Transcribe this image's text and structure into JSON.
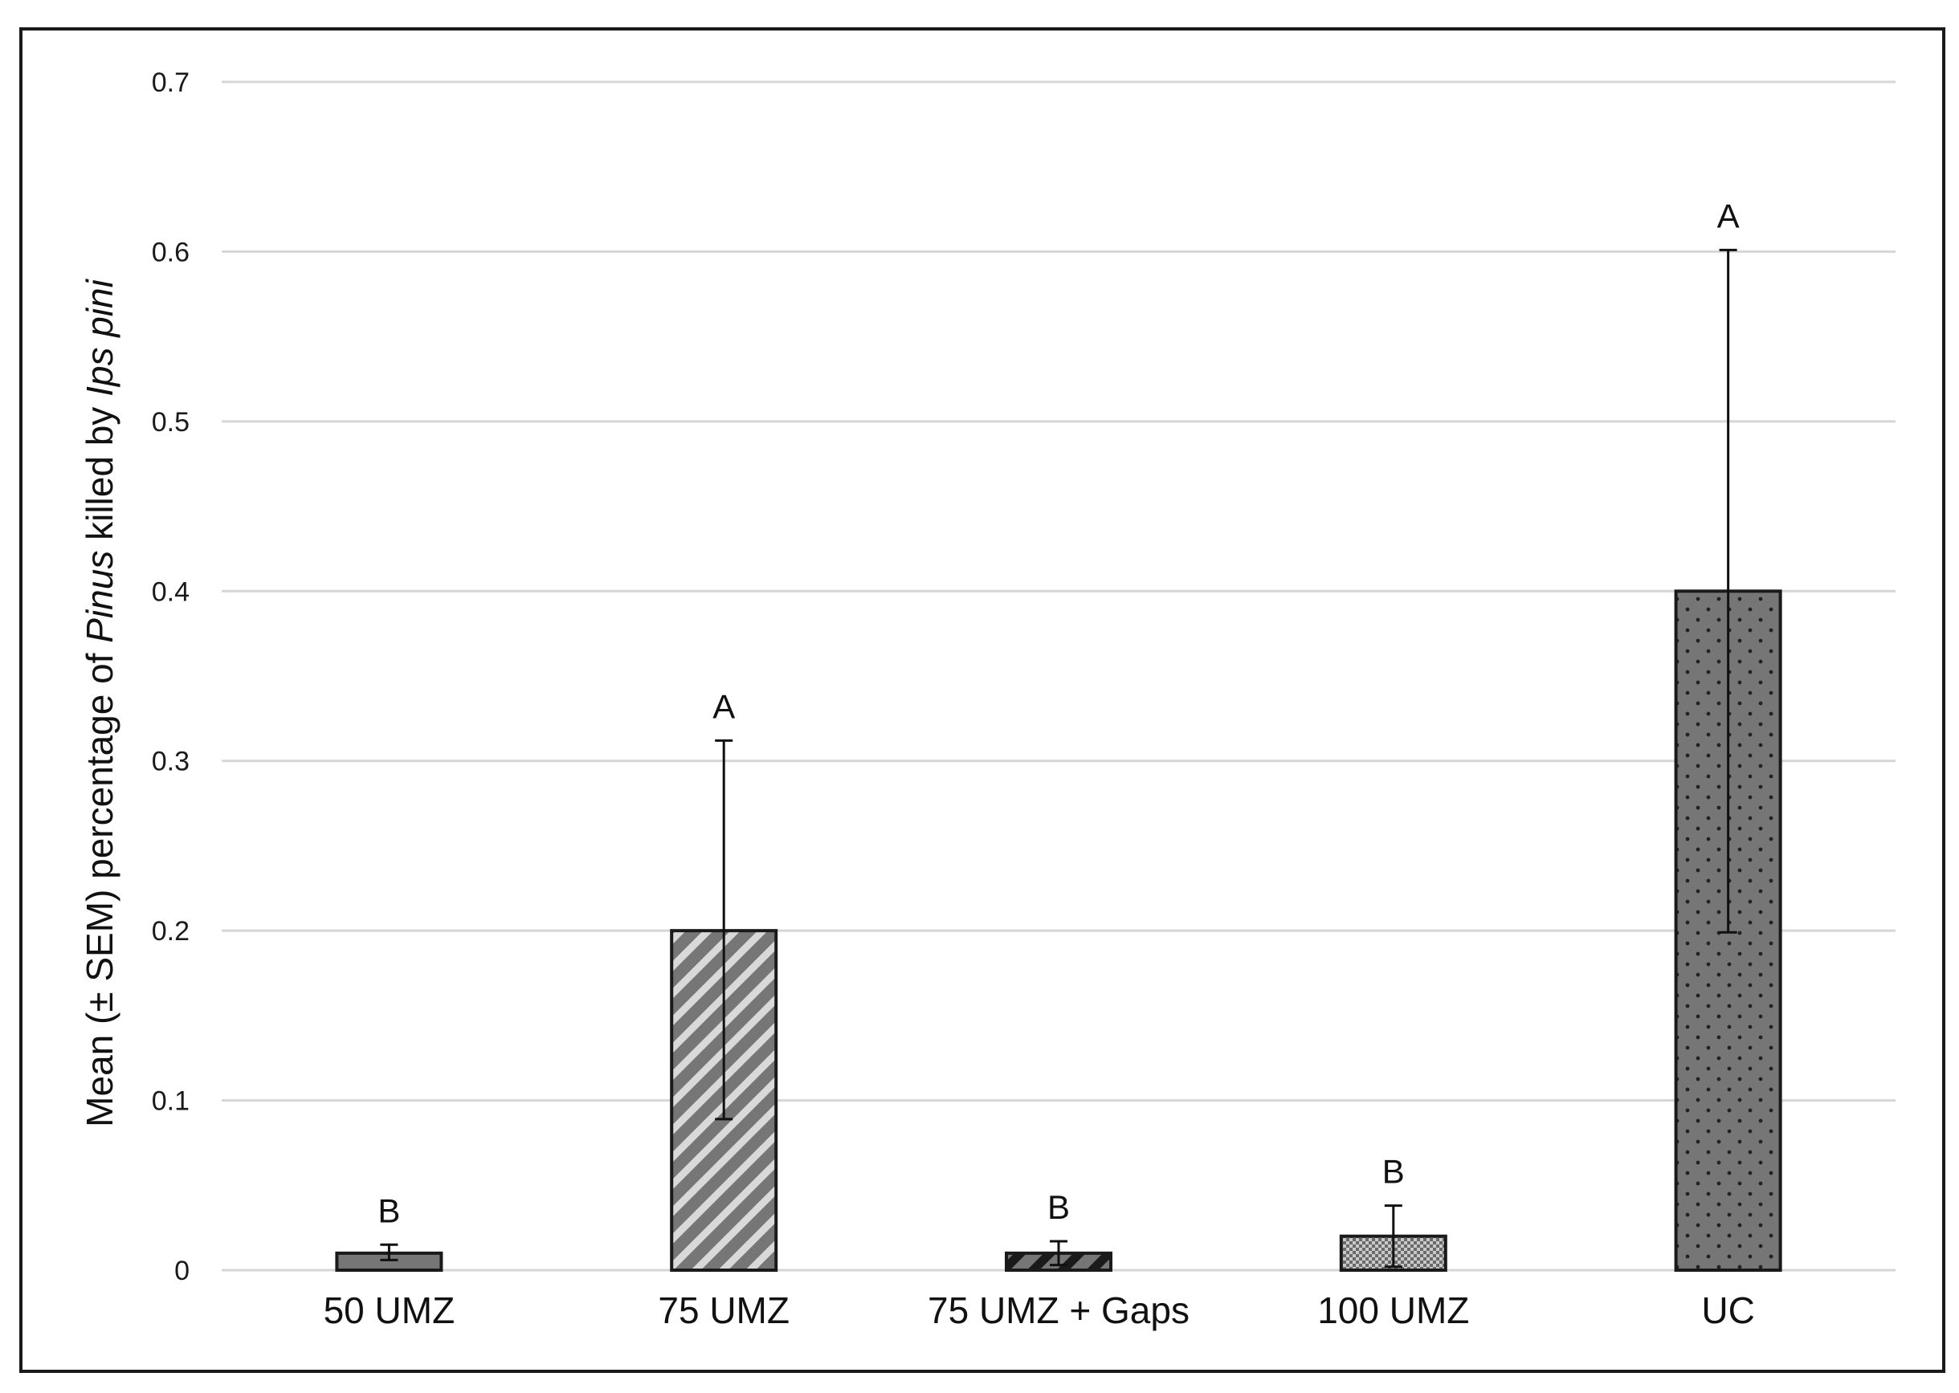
{
  "chart_data": {
    "type": "bar",
    "title": "",
    "xlabel": "",
    "ylabel_parts": [
      {
        "text": "Mean (± SEM) percentage of ",
        "italic": false
      },
      {
        "text": "Pinus",
        "italic": true
      },
      {
        "text": " killed by ",
        "italic": false
      },
      {
        "text": "Ips pini",
        "italic": true
      }
    ],
    "ylim": [
      0,
      0.7
    ],
    "yticks": [
      0,
      0.1,
      0.2,
      0.3,
      0.4,
      0.5,
      0.6,
      0.7
    ],
    "ytick_labels": [
      "0",
      "0.1",
      "0.2",
      "0.3",
      "0.4",
      "0.5",
      "0.6",
      "0.7"
    ],
    "grid": true,
    "categories": [
      "50 UMZ",
      "75 UMZ",
      "75 UMZ + Gaps",
      "100 UMZ",
      "UC"
    ],
    "values": [
      0.01,
      0.2,
      0.01,
      0.02,
      0.4
    ],
    "error_upper": [
      0.015,
      0.312,
      0.017,
      0.038,
      0.601
    ],
    "error_lower": [
      0.006,
      0.089,
      0.003,
      0.002,
      0.199
    ],
    "significance_letters": [
      "B",
      "A",
      "B",
      "B",
      "A"
    ],
    "bar_fills": [
      "solid",
      "diagonal-stripes",
      "diagonal-stripes-dark",
      "checkered",
      "dots"
    ],
    "colors": {
      "bar_fill": "#767676",
      "checkered_fill": "#c9c9c9",
      "stripe_light": "#d9d9d9",
      "stripe_dark": "#1a1a1a",
      "dot": "#222222",
      "gridline": "#d6d6d6",
      "frame": "#1a1a1a"
    }
  }
}
